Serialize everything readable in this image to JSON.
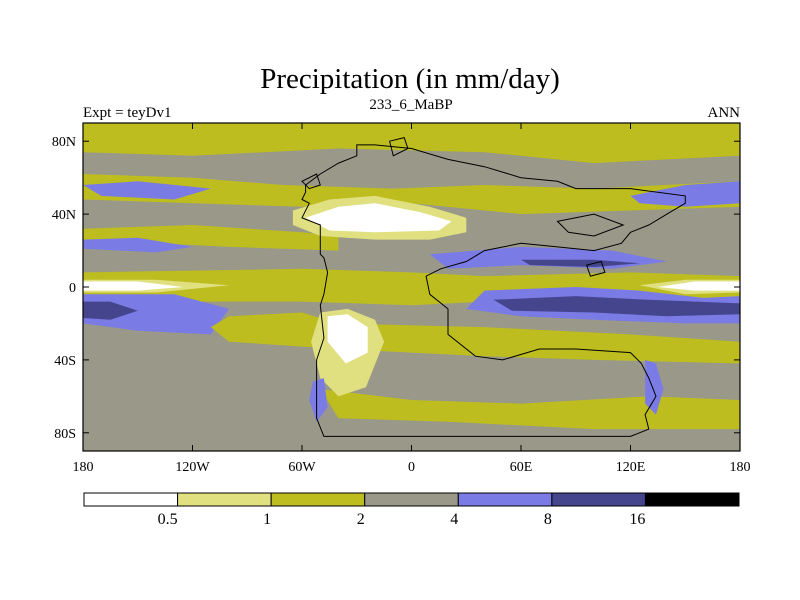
{
  "chart_data": {
    "type": "heatmap",
    "title": "Precipitation (in mm/day)",
    "left_label": "Expt = teyDv1",
    "center_label": "233_6_MaBP",
    "right_label": "ANN",
    "x_range": [
      -180,
      180
    ],
    "y_range": [
      -90,
      90
    ],
    "x_ticks": [
      {
        "value": -180,
        "label": "180"
      },
      {
        "value": -120,
        "label": "120W"
      },
      {
        "value": -60,
        "label": "60W"
      },
      {
        "value": 0,
        "label": "0"
      },
      {
        "value": 60,
        "label": "60E"
      },
      {
        "value": 120,
        "label": "120E"
      },
      {
        "value": 180,
        "label": "180"
      }
    ],
    "y_ticks": [
      {
        "value": 80,
        "label": "80N"
      },
      {
        "value": 40,
        "label": "40N"
      },
      {
        "value": 0,
        "label": "0"
      },
      {
        "value": -40,
        "label": "40S"
      },
      {
        "value": -80,
        "label": "80S"
      }
    ],
    "levels": [
      0.5,
      1,
      2,
      4,
      8,
      16
    ],
    "level_labels": [
      "0.5",
      "1",
      "2",
      "4",
      "8",
      "16"
    ],
    "colors": [
      "#ffffff",
      "#e0e080",
      "#bdbd1f",
      "#999889",
      "#7b7be6",
      "#45458e",
      "#000000"
    ],
    "regions": [
      {
        "name": "global-background",
        "level": 3,
        "points": [
          [
            -180,
            90
          ],
          [
            180,
            90
          ],
          [
            180,
            -90
          ],
          [
            -180,
            -90
          ]
        ]
      },
      {
        "name": "north-polar-band",
        "level": 2,
        "points": [
          [
            -180,
            90
          ],
          [
            180,
            90
          ],
          [
            180,
            72
          ],
          [
            100,
            68
          ],
          [
            40,
            74
          ],
          [
            -40,
            76
          ],
          [
            -120,
            72
          ],
          [
            -180,
            74
          ]
        ]
      },
      {
        "name": "northern-midlatitude-band",
        "level": 2,
        "points": [
          [
            -180,
            62
          ],
          [
            -120,
            60
          ],
          [
            -70,
            56
          ],
          [
            -10,
            54
          ],
          [
            40,
            56
          ],
          [
            100,
            54
          ],
          [
            180,
            58
          ],
          [
            180,
            44
          ],
          [
            120,
            42
          ],
          [
            60,
            40
          ],
          [
            0,
            46
          ],
          [
            -60,
            44
          ],
          [
            -120,
            46
          ],
          [
            -180,
            48
          ]
        ]
      },
      {
        "name": "north-pacific-wet",
        "level": 4,
        "points": [
          [
            -180,
            56
          ],
          [
            -150,
            58
          ],
          [
            -110,
            54
          ],
          [
            -130,
            48
          ],
          [
            -170,
            50
          ]
        ]
      },
      {
        "name": "north-atlantic-wet",
        "level": 4,
        "points": [
          [
            120,
            50
          ],
          [
            150,
            56
          ],
          [
            180,
            58
          ],
          [
            180,
            46
          ],
          [
            150,
            44
          ],
          [
            125,
            46
          ]
        ]
      },
      {
        "name": "north-subtropics",
        "level": 2,
        "points": [
          [
            -180,
            32
          ],
          [
            -120,
            34
          ],
          [
            -60,
            30
          ],
          [
            -40,
            28
          ],
          [
            -40,
            20
          ],
          [
            -100,
            22
          ],
          [
            -180,
            26
          ]
        ]
      },
      {
        "name": "north-subtropical-wet",
        "level": 4,
        "points": [
          [
            -180,
            26
          ],
          [
            -150,
            27
          ],
          [
            -120,
            22
          ],
          [
            -140,
            19
          ],
          [
            -180,
            21
          ]
        ]
      },
      {
        "name": "equatorial-band",
        "level": 2,
        "points": [
          [
            -180,
            8
          ],
          [
            -60,
            10
          ],
          [
            0,
            8
          ],
          [
            40,
            6
          ],
          [
            120,
            8
          ],
          [
            180,
            6
          ],
          [
            180,
            -8
          ],
          [
            120,
            -6
          ],
          [
            40,
            -8
          ],
          [
            0,
            -10
          ],
          [
            -60,
            -8
          ],
          [
            -180,
            -8
          ]
        ]
      },
      {
        "name": "equatorial-dry-west",
        "level": 1,
        "points": [
          [
            -180,
            4
          ],
          [
            -140,
            4
          ],
          [
            -100,
            1
          ],
          [
            -140,
            -3
          ],
          [
            -180,
            -3
          ]
        ]
      },
      {
        "name": "equatorial-dry-west-core",
        "level": 0,
        "points": [
          [
            -180,
            3
          ],
          [
            -150,
            3
          ],
          [
            -125,
            0
          ],
          [
            -150,
            -2
          ],
          [
            -180,
            -2
          ]
        ]
      },
      {
        "name": "equatorial-dry-east",
        "level": 1,
        "points": [
          [
            125,
            1
          ],
          [
            150,
            4
          ],
          [
            180,
            4
          ],
          [
            180,
            -3
          ],
          [
            150,
            -4
          ]
        ]
      },
      {
        "name": "equatorial-dry-east-core",
        "level": 0,
        "points": [
          [
            135,
            0
          ],
          [
            155,
            3
          ],
          [
            180,
            3
          ],
          [
            180,
            -2
          ],
          [
            155,
            -2
          ]
        ]
      },
      {
        "name": "eastern-tropical-wet",
        "level": 4,
        "points": [
          [
            10,
            18
          ],
          [
            60,
            22
          ],
          [
            110,
            20
          ],
          [
            140,
            14
          ],
          [
            110,
            10
          ],
          [
            60,
            12
          ],
          [
            20,
            10
          ]
        ]
      },
      {
        "name": "east-equatorial-wet",
        "level": 4,
        "points": [
          [
            40,
            -2
          ],
          [
            90,
            0
          ],
          [
            125,
            -2
          ],
          [
            160,
            -6
          ],
          [
            180,
            -5
          ],
          [
            180,
            -20
          ],
          [
            150,
            -20
          ],
          [
            100,
            -18
          ],
          [
            60,
            -16
          ],
          [
            30,
            -12
          ]
        ]
      },
      {
        "name": "east-equatorial-core",
        "level": 5,
        "points": [
          [
            45,
            -7
          ],
          [
            90,
            -5
          ],
          [
            130,
            -7
          ],
          [
            180,
            -9
          ],
          [
            180,
            -15
          ],
          [
            140,
            -16
          ],
          [
            100,
            -14
          ],
          [
            55,
            -13
          ]
        ]
      },
      {
        "name": "east-tropical-core",
        "level": 5,
        "points": [
          [
            60,
            15
          ],
          [
            100,
            15
          ],
          [
            125,
            13
          ],
          [
            100,
            11
          ],
          [
            65,
            12
          ]
        ]
      },
      {
        "name": "west-south-wet",
        "level": 4,
        "points": [
          [
            -180,
            -4
          ],
          [
            -130,
            -4
          ],
          [
            -100,
            -12
          ],
          [
            -110,
            -26
          ],
          [
            -150,
            -24
          ],
          [
            -180,
            -20
          ]
        ]
      },
      {
        "name": "west-south-core",
        "level": 5,
        "points": [
          [
            -180,
            -8
          ],
          [
            -165,
            -8
          ],
          [
            -150,
            -13
          ],
          [
            -165,
            -18
          ],
          [
            -180,
            -17
          ]
        ]
      },
      {
        "name": "southern-subtropics",
        "level": 2,
        "points": [
          [
            -100,
            -16
          ],
          [
            -60,
            -14
          ],
          [
            -40,
            -20
          ],
          [
            40,
            -22
          ],
          [
            120,
            -26
          ],
          [
            180,
            -30
          ],
          [
            180,
            -42
          ],
          [
            100,
            -40
          ],
          [
            40,
            -38
          ],
          [
            -40,
            -34
          ],
          [
            -100,
            -30
          ],
          [
            -110,
            -22
          ]
        ]
      },
      {
        "name": "southern-high-band",
        "level": 2,
        "points": [
          [
            -50,
            -56
          ],
          [
            0,
            -62
          ],
          [
            60,
            -64
          ],
          [
            130,
            -60
          ],
          [
            180,
            -62
          ],
          [
            180,
            -78
          ],
          [
            100,
            -78
          ],
          [
            20,
            -74
          ],
          [
            -40,
            -72
          ]
        ]
      },
      {
        "name": "pangea-north-interior-arid",
        "level": 1,
        "points": [
          [
            -65,
            42
          ],
          [
            -45,
            48
          ],
          [
            -20,
            50
          ],
          [
            10,
            44
          ],
          [
            30,
            38
          ],
          [
            30,
            30
          ],
          [
            10,
            26
          ],
          [
            -20,
            26
          ],
          [
            -50,
            28
          ],
          [
            -65,
            34
          ]
        ]
      },
      {
        "name": "pangea-north-interior-desert",
        "level": 0,
        "points": [
          [
            -58,
            38
          ],
          [
            -40,
            44
          ],
          [
            -20,
            46
          ],
          [
            5,
            41
          ],
          [
            22,
            36
          ],
          [
            15,
            31
          ],
          [
            -20,
            30
          ],
          [
            -45,
            31
          ]
        ]
      },
      {
        "name": "pangea-south-interior-arid",
        "level": 1,
        "points": [
          [
            -50,
            -14
          ],
          [
            -35,
            -12
          ],
          [
            -20,
            -18
          ],
          [
            -15,
            -30
          ],
          [
            -25,
            -55
          ],
          [
            -40,
            -60
          ],
          [
            -50,
            -50
          ],
          [
            -55,
            -30
          ]
        ]
      },
      {
        "name": "pangea-south-interior-desert",
        "level": 0,
        "points": [
          [
            -46,
            -16
          ],
          [
            -35,
            -15
          ],
          [
            -24,
            -22
          ],
          [
            -24,
            -36
          ],
          [
            -36,
            -42
          ],
          [
            -46,
            -30
          ]
        ]
      },
      {
        "name": "south-west-coast-wet",
        "level": 4,
        "points": [
          [
            -54,
            -52
          ],
          [
            -48,
            -50
          ],
          [
            -46,
            -66
          ],
          [
            -52,
            -74
          ],
          [
            -56,
            -62
          ]
        ]
      },
      {
        "name": "south-east-coast-wet",
        "level": 4,
        "points": [
          [
            128,
            -40
          ],
          [
            134,
            -42
          ],
          [
            138,
            -56
          ],
          [
            134,
            -70
          ],
          [
            128,
            -64
          ]
        ]
      }
    ],
    "outlines": [
      {
        "name": "pangea-coastline",
        "points": [
          [
            -58,
            52
          ],
          [
            -60,
            48
          ],
          [
            -56,
            46
          ],
          [
            -60,
            38
          ],
          [
            -50,
            34
          ],
          [
            -50,
            18
          ],
          [
            -48,
            16
          ],
          [
            -46,
            8
          ],
          [
            -48,
            -4
          ],
          [
            -50,
            -10
          ],
          [
            -48,
            -28
          ],
          [
            -52,
            -40
          ],
          [
            -52,
            -72
          ],
          [
            -48,
            -82
          ],
          [
            0,
            -82
          ],
          [
            60,
            -82
          ],
          [
            120,
            -82
          ],
          [
            130,
            -78
          ],
          [
            128,
            -70
          ],
          [
            134,
            -60
          ],
          [
            130,
            -50
          ],
          [
            126,
            -42
          ],
          [
            120,
            -36
          ],
          [
            90,
            -34
          ],
          [
            70,
            -34
          ],
          [
            50,
            -40
          ],
          [
            35,
            -38
          ],
          [
            20,
            -26
          ],
          [
            20,
            -12
          ],
          [
            10,
            -4
          ],
          [
            8,
            6
          ],
          [
            16,
            10
          ],
          [
            30,
            14
          ],
          [
            40,
            20
          ],
          [
            60,
            24
          ],
          [
            80,
            22
          ],
          [
            100,
            20
          ],
          [
            115,
            24
          ],
          [
            120,
            30
          ],
          [
            130,
            34
          ],
          [
            140,
            40
          ],
          [
            150,
            46
          ],
          [
            150,
            50
          ],
          [
            120,
            54
          ],
          [
            90,
            54
          ],
          [
            80,
            58
          ],
          [
            60,
            60
          ],
          [
            40,
            66
          ],
          [
            20,
            70
          ],
          [
            0,
            76
          ],
          [
            -20,
            78
          ],
          [
            -30,
            78
          ],
          [
            -30,
            72
          ],
          [
            -40,
            68
          ],
          [
            -50,
            62
          ],
          [
            -58,
            56
          ]
        ]
      },
      {
        "name": "north-island",
        "points": [
          [
            -10,
            72
          ],
          [
            -2,
            76
          ],
          [
            -4,
            82
          ],
          [
            -12,
            80
          ]
        ]
      },
      {
        "name": "east-block",
        "points": [
          [
            80,
            36
          ],
          [
            100,
            40
          ],
          [
            116,
            34
          ],
          [
            100,
            28
          ],
          [
            86,
            30
          ]
        ]
      },
      {
        "name": "east-islands",
        "points": [
          [
            96,
            12
          ],
          [
            104,
            14
          ],
          [
            106,
            8
          ],
          [
            98,
            6
          ]
        ]
      },
      {
        "name": "west-islands",
        "points": [
          [
            -60,
            58
          ],
          [
            -52,
            62
          ],
          [
            -50,
            56
          ],
          [
            -56,
            54
          ]
        ]
      }
    ]
  }
}
